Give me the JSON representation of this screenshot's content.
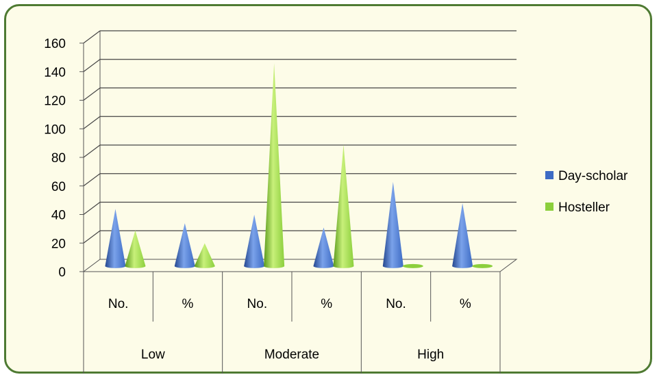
{
  "chart_data": {
    "type": "bar",
    "style": "3d-cone",
    "categories": [
      {
        "group": "Low",
        "sub": "No."
      },
      {
        "group": "Low",
        "sub": "%"
      },
      {
        "group": "Moderate",
        "sub": "No."
      },
      {
        "group": "Moderate",
        "sub": "%"
      },
      {
        "group": "High",
        "sub": "No."
      },
      {
        "group": "High",
        "sub": "%"
      }
    ],
    "groups": [
      "Low",
      "Moderate",
      "High"
    ],
    "sub_labels": [
      "No.",
      "%",
      "No.",
      "%",
      "No.",
      "%"
    ],
    "series": [
      {
        "name": "Day-scholar",
        "color": "#3d6bc4",
        "values": [
          40,
          30,
          36,
          27,
          59,
          44
        ]
      },
      {
        "name": "Hosteller",
        "color": "#8ccf3c",
        "values": [
          25,
          16,
          142,
          85,
          1,
          1
        ]
      }
    ],
    "y_ticks": [
      "0",
      "20",
      "40",
      "60",
      "80",
      "100",
      "120",
      "140",
      "160"
    ],
    "ylim": [
      0,
      160
    ],
    "grid": true,
    "legend_position": "right",
    "frame_color": "#4e7a32",
    "background_color": "#fdfce8"
  }
}
